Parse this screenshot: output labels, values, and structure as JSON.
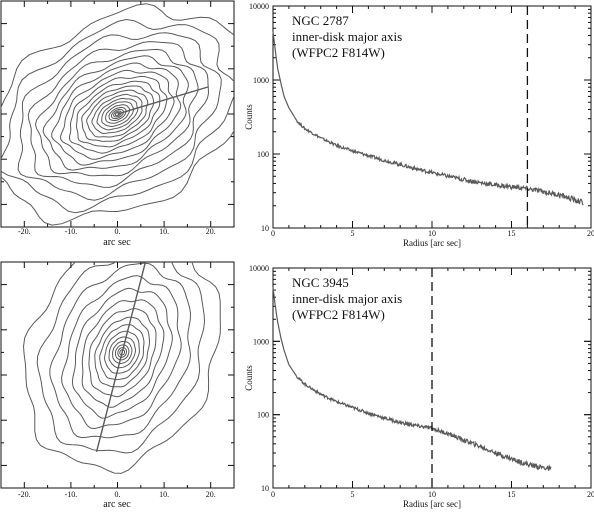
{
  "figure": {
    "line_color": "#5a5a5a",
    "axis_color": "#111111",
    "marker_color": "#111111"
  },
  "chart_data": [
    {
      "type": "contour",
      "panel": "ngc2787-contours",
      "xlabel": "arc sec",
      "xlim": [
        -25,
        25
      ],
      "ylim": [
        -25,
        25
      ],
      "xticks": [
        -20,
        -10,
        0,
        10,
        20
      ],
      "xtick_labels": [
        "-20.",
        "-10.",
        "0.",
        "10.",
        "20."
      ],
      "center": [
        0,
        0
      ],
      "major_axis_angle_deg": 30,
      "axis_line": {
        "from": [
          0,
          0
        ],
        "to": [
          19.5,
          6
        ]
      },
      "contours": [
        {
          "a": 0.5,
          "b": 0.3
        },
        {
          "a": 0.9,
          "b": 0.55
        },
        {
          "a": 1.4,
          "b": 0.85
        },
        {
          "a": 2.0,
          "b": 1.2
        },
        {
          "a": 2.8,
          "b": 1.7
        },
        {
          "a": 3.7,
          "b": 2.3
        },
        {
          "a": 4.7,
          "b": 2.9
        },
        {
          "a": 5.8,
          "b": 3.6
        },
        {
          "a": 7.0,
          "b": 4.4
        },
        {
          "a": 8.3,
          "b": 5.2
        },
        {
          "a": 9.7,
          "b": 6.1
        },
        {
          "a": 11.2,
          "b": 7.1
        },
        {
          "a": 12.8,
          "b": 8.2
        },
        {
          "a": 14.5,
          "b": 9.4
        },
        {
          "a": 16.3,
          "b": 10.7
        },
        {
          "a": 18.2,
          "b": 12.1
        },
        {
          "a": 20.5,
          "b": 13.8
        },
        {
          "a": 23.0,
          "b": 15.8
        },
        {
          "a": 26.0,
          "b": 18.0
        },
        {
          "a": 29.5,
          "b": 20.5
        }
      ]
    },
    {
      "type": "line",
      "panel": "ngc2787-profile",
      "title_lines": [
        "NGC 2787",
        "inner-disk major axis",
        "(WFPC2 F814W)"
      ],
      "xlabel": "Radius [arc sec]",
      "ylabel": "Counts",
      "xlim": [
        0,
        20
      ],
      "ylim": [
        10,
        10000
      ],
      "yscale": "log",
      "xticks": [
        0,
        5,
        10,
        15,
        20
      ],
      "yticks": [
        10,
        100,
        1000,
        10000
      ],
      "marker_x": 16,
      "series": [
        {
          "x": [
            0,
            0.1,
            0.2,
            0.3,
            0.5,
            0.7,
            1.0,
            1.5,
            2,
            3,
            4,
            5,
            6,
            7,
            8,
            9,
            10,
            11,
            12,
            13,
            14,
            15,
            16,
            17,
            18,
            19,
            19.5
          ],
          "y": [
            4500,
            3000,
            2000,
            1400,
            900,
            600,
            420,
            280,
            220,
            165,
            130,
            110,
            95,
            82,
            72,
            63,
            56,
            50,
            45,
            41,
            38,
            36,
            34,
            31,
            28,
            24,
            22
          ]
        }
      ]
    },
    {
      "type": "contour",
      "panel": "ngc3945-contours",
      "xlabel": "arc sec",
      "xlim": [
        -25,
        25
      ],
      "ylim": [
        -25,
        25
      ],
      "xticks": [
        -20,
        -10,
        0,
        10,
        20
      ],
      "xtick_labels": [
        "-20.",
        "-10.",
        "0.",
        "10.",
        "20."
      ],
      "center": [
        1,
        5
      ],
      "major_axis_angle_deg": 68,
      "axis_line": {
        "from": [
          -4.5,
          -17
        ],
        "to": [
          6.5,
          27
        ]
      },
      "contours": [
        {
          "a": 0.6,
          "b": 0.5
        },
        {
          "a": 1.1,
          "b": 0.9
        },
        {
          "a": 1.7,
          "b": 1.4
        },
        {
          "a": 2.5,
          "b": 2.0
        },
        {
          "a": 3.5,
          "b": 2.7
        },
        {
          "a": 4.8,
          "b": 3.5
        },
        {
          "a": 6.3,
          "b": 4.4
        },
        {
          "a": 8.0,
          "b": 5.4
        },
        {
          "a": 10.0,
          "b": 6.6
        },
        {
          "a": 12.2,
          "b": 8.0
        },
        {
          "a": 14.6,
          "b": 9.6
        },
        {
          "a": 17.2,
          "b": 11.5
        },
        {
          "a": 20.0,
          "b": 13.8
        },
        {
          "a": 23.0,
          "b": 16.5
        },
        {
          "a": 26.5,
          "b": 19.8
        }
      ]
    },
    {
      "type": "line",
      "panel": "ngc3945-profile",
      "title_lines": [
        "NGC 3945",
        "inner-disk major axis",
        "(WFPC2 F814W)"
      ],
      "xlabel": "Radius [arc sec]",
      "ylabel": "Counts",
      "xlim": [
        0,
        20
      ],
      "ylim": [
        10,
        10000
      ],
      "yscale": "log",
      "xticks": [
        0,
        5,
        10,
        15,
        20
      ],
      "yticks": [
        10,
        100,
        1000,
        10000
      ],
      "marker_x": 10,
      "series": [
        {
          "x": [
            0,
            0.1,
            0.2,
            0.3,
            0.5,
            0.7,
            1.0,
            1.5,
            2,
            3,
            4,
            5,
            6,
            7,
            8,
            9,
            10,
            11,
            12,
            13,
            14,
            15,
            16,
            17,
            17.5
          ],
          "y": [
            5500,
            3600,
            2500,
            1800,
            1100,
            750,
            480,
            330,
            260,
            190,
            150,
            125,
            105,
            90,
            78,
            71,
            65,
            55,
            45,
            37,
            30,
            25,
            21,
            19,
            18
          ]
        }
      ]
    }
  ]
}
